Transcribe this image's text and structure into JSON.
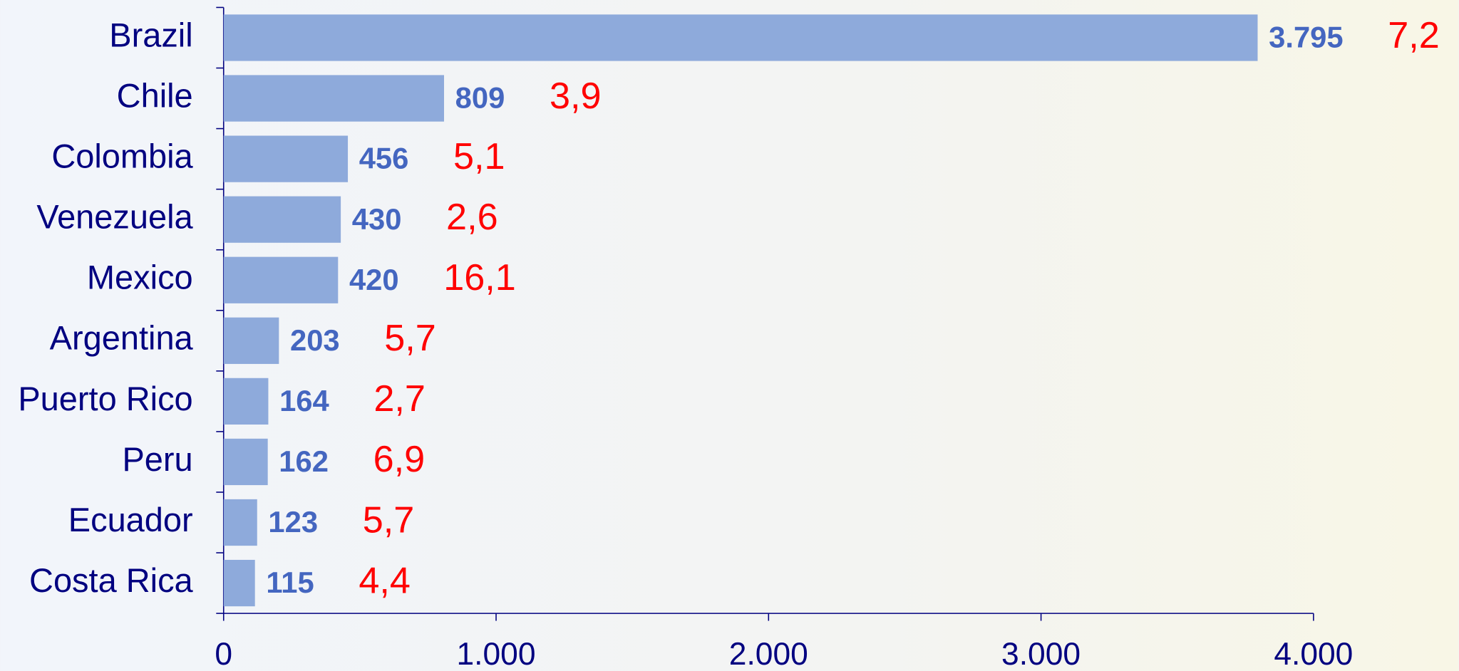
{
  "chart_data": {
    "type": "bar",
    "orientation": "horizontal",
    "categories": [
      "Brazil",
      "Chile",
      "Colombia",
      "Venezuela",
      "Mexico",
      "Argentina",
      "Puerto Rico",
      "Peru",
      "Ecuador",
      "Costa Rica"
    ],
    "series": [
      {
        "color": "#8eaadb",
        "label_color": "#4466c0",
        "values": [
          3795,
          809,
          456,
          430,
          420,
          203,
          164,
          162,
          123,
          115
        ],
        "value_labels": [
          "3.795",
          "809",
          "456",
          "430",
          "420",
          "203",
          "164",
          "162",
          "123",
          "115"
        ]
      },
      {
        "color": "#ff0000",
        "values": [
          7.2,
          3.9,
          5.1,
          2.6,
          16.1,
          5.7,
          2.7,
          6.9,
          5.7,
          4.4
        ],
        "value_labels": [
          "7,2",
          "3,9",
          "5,1",
          "2,6",
          "16,1",
          "5,7",
          "2,7",
          "6,9",
          "5,7",
          "4,4"
        ]
      }
    ],
    "xlim": [
      0,
      4000
    ],
    "xticks": [
      0,
      {
        "value": 1000,
        "label": "1.000"
      },
      {
        "value": 2000,
        "label": "2.000"
      },
      {
        "value": 3000,
        "label": "3.000"
      },
      {
        "value": 4000,
        "label": "4.000"
      }
    ],
    "axis_color": "#000080"
  }
}
